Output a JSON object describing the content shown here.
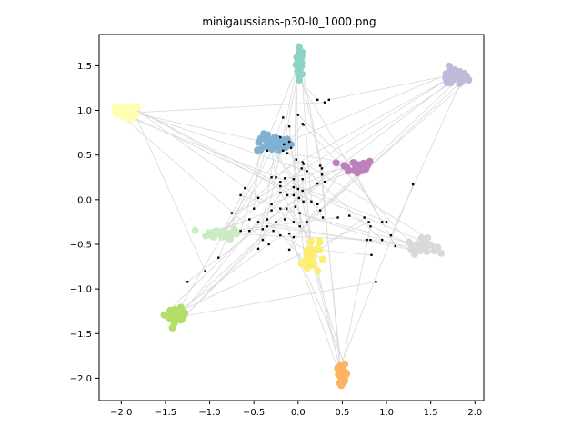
{
  "chart_data": {
    "type": "scatter",
    "title": "minigaussians-p30-l0_1000.png",
    "xlabel": "",
    "ylabel": "",
    "xlim": [
      -2.25,
      2.1
    ],
    "ylim": [
      -2.25,
      1.85
    ],
    "xticks": [
      -2.0,
      -1.5,
      -1.0,
      -0.5,
      0.0,
      0.5,
      1.0,
      1.5,
      2.0
    ],
    "xtick_labels": [
      "−2.0",
      "−1.5",
      "−1.0",
      "−0.5",
      "0.0",
      "0.5",
      "1.0",
      "1.5",
      "2.0"
    ],
    "yticks": [
      -2.0,
      -1.5,
      -1.0,
      -0.5,
      0.0,
      0.5,
      1.0,
      1.5
    ],
    "ytick_labels": [
      "−2.0",
      "−1.5",
      "−1.0",
      "−0.5",
      "0.0",
      "0.5",
      "1.0",
      "1.5"
    ],
    "grid": false,
    "legend": "none",
    "edge_color": "#d9d9d9",
    "center_point_color": "#000000",
    "clusters": [
      {
        "color": "#8dd3c7",
        "center": [
          0.02,
          1.55
        ],
        "spread": [
          0.02,
          0.08
        ],
        "count": 30
      },
      {
        "color": "#ffffb3",
        "center": [
          -1.93,
          0.98
        ],
        "spread": [
          0.07,
          0.04
        ],
        "count": 30
      },
      {
        "color": "#bebada",
        "center": [
          1.76,
          1.37
        ],
        "spread": [
          0.08,
          0.05
        ],
        "count": 30
      },
      {
        "color": "#80b1d3",
        "center": [
          -0.27,
          0.63
        ],
        "spread": [
          0.1,
          0.05
        ],
        "count": 30
      },
      {
        "color": "#bc80bd",
        "center": [
          0.66,
          0.37
        ],
        "spread": [
          0.1,
          0.04
        ],
        "count": 30
      },
      {
        "color": "#ccebc5",
        "center": [
          -0.85,
          -0.38
        ],
        "spread": [
          0.09,
          0.03
        ],
        "count": 30
      },
      {
        "color": "#d9d9d9",
        "center": [
          1.4,
          -0.52
        ],
        "spread": [
          0.08,
          0.04
        ],
        "count": 30
      },
      {
        "color": "#ffed6f",
        "center": [
          0.14,
          -0.64
        ],
        "spread": [
          0.05,
          0.1
        ],
        "count": 30
      },
      {
        "color": "#b3de69",
        "center": [
          -1.37,
          -1.3
        ],
        "spread": [
          0.05,
          0.04
        ],
        "count": 30
      },
      {
        "color": "#fdb462",
        "center": [
          0.5,
          -1.95
        ],
        "spread": [
          0.03,
          0.05
        ],
        "count": 30
      }
    ],
    "center_points": [
      [
        0.22,
        1.12
      ],
      [
        0.3,
        1.09
      ],
      [
        0.35,
        1.12
      ],
      [
        -0.17,
        0.92
      ],
      [
        0.0,
        0.95
      ],
      [
        0.05,
        0.85
      ],
      [
        0.06,
        0.84
      ],
      [
        -0.1,
        0.82
      ],
      [
        -0.2,
        0.7
      ],
      [
        -0.1,
        0.65
      ],
      [
        -0.16,
        0.62
      ],
      [
        -0.08,
        0.58
      ],
      [
        -0.35,
        0.55
      ],
      [
        -0.17,
        0.55
      ],
      [
        -0.12,
        0.52
      ],
      [
        -0.02,
        0.45
      ],
      [
        0.05,
        0.42
      ],
      [
        0.06,
        0.4
      ],
      [
        0.04,
        0.35
      ],
      [
        0.25,
        0.38
      ],
      [
        0.27,
        0.35
      ],
      [
        0.1,
        0.32
      ],
      [
        -0.3,
        0.25
      ],
      [
        -0.25,
        0.25
      ],
      [
        -0.15,
        0.24
      ],
      [
        -0.05,
        0.23
      ],
      [
        -0.2,
        0.2
      ],
      [
        0.05,
        0.23
      ],
      [
        0.22,
        0.18
      ],
      [
        0.27,
        0.28
      ],
      [
        0.3,
        0.2
      ],
      [
        -0.2,
        0.15
      ],
      [
        -0.05,
        0.14
      ],
      [
        0.0,
        0.12
      ],
      [
        0.05,
        0.1
      ],
      [
        -0.6,
        0.13
      ],
      [
        -0.65,
        0.05
      ],
      [
        -0.2,
        0.08
      ],
      [
        -0.12,
        0.05
      ],
      [
        -0.05,
        0.05
      ],
      [
        0.01,
        0.02
      ],
      [
        0.06,
        -0.02
      ],
      [
        -0.45,
        0.02
      ],
      [
        -0.5,
        -0.1
      ],
      [
        -0.3,
        -0.05
      ],
      [
        -0.3,
        -0.12
      ],
      [
        -0.2,
        -0.1
      ],
      [
        -0.13,
        -0.1
      ],
      [
        -0.03,
        -0.08
      ],
      [
        0.02,
        -0.15
      ],
      [
        0.15,
        -0.02
      ],
      [
        0.22,
        -0.05
      ],
      [
        0.25,
        -0.12
      ],
      [
        0.28,
        -0.2
      ],
      [
        -0.75,
        -0.15
      ],
      [
        -0.55,
        -0.22
      ],
      [
        -0.45,
        -0.25
      ],
      [
        -0.35,
        -0.22
      ],
      [
        -0.25,
        -0.25
      ],
      [
        -0.15,
        -0.22
      ],
      [
        -0.05,
        -0.25
      ],
      [
        0.02,
        -0.3
      ],
      [
        0.1,
        -0.25
      ],
      [
        -0.65,
        -0.35
      ],
      [
        -0.55,
        -0.35
      ],
      [
        -0.4,
        -0.33
      ],
      [
        -0.35,
        -0.3
      ],
      [
        -0.28,
        -0.35
      ],
      [
        -0.2,
        -0.4
      ],
      [
        -0.1,
        -0.38
      ],
      [
        -0.4,
        -0.45
      ],
      [
        -0.33,
        -0.5
      ],
      [
        -0.05,
        -0.42
      ],
      [
        -0.45,
        -0.55
      ],
      [
        -0.1,
        -0.56
      ],
      [
        0.45,
        -0.2
      ],
      [
        0.58,
        -0.18
      ],
      [
        0.75,
        -0.2
      ],
      [
        0.8,
        -0.25
      ],
      [
        0.82,
        -0.3
      ],
      [
        0.95,
        -0.25
      ],
      [
        1.0,
        -0.25
      ],
      [
        1.05,
        -0.4
      ],
      [
        0.95,
        -0.45
      ],
      [
        1.1,
        -0.52
      ],
      [
        0.82,
        -0.45
      ],
      [
        0.78,
        -0.45
      ],
      [
        0.83,
        -0.62
      ],
      [
        0.88,
        -0.92
      ],
      [
        1.3,
        0.17
      ],
      [
        -0.9,
        -0.65
      ],
      [
        -1.05,
        -0.8
      ],
      [
        -1.25,
        -0.92
      ]
    ]
  }
}
